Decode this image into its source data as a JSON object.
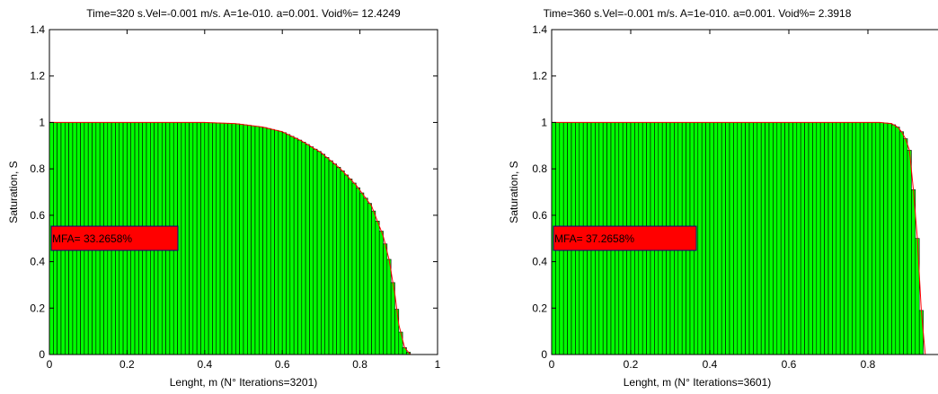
{
  "chart_data": [
    {
      "type": "bar",
      "title": "Time=320 s.Vel=-0.001 m/s. A=1e-010. a=0.001. Void%= 12.4249",
      "xlabel": "Lenght, m (N° Iterations=3201)",
      "ylabel": "Saturation, S",
      "xlim": [
        0,
        1
      ],
      "ylim": [
        0,
        1.4
      ],
      "xticks": [
        "0",
        "0.2",
        "0.4",
        "0.6",
        "0.8",
        "1"
      ],
      "yticks": [
        "0",
        "0.2",
        "0.4",
        "0.6",
        "0.8",
        "1",
        "1.2",
        "1.4"
      ],
      "annotation": "MFA= 33.2658%",
      "bar_color": "#00ff00",
      "curve_color": "#ff0000",
      "annotation_color": "#ff0000",
      "profile_x": [
        0,
        0.4,
        0.48,
        0.55,
        0.6,
        0.65,
        0.7,
        0.75,
        0.79,
        0.83,
        0.86,
        0.875,
        0.89,
        0.9,
        0.915,
        0.93,
        1.0
      ],
      "profile_y": [
        1.0,
        1.0,
        0.995,
        0.98,
        0.96,
        0.92,
        0.87,
        0.8,
        0.73,
        0.64,
        0.51,
        0.41,
        0.26,
        0.13,
        0.03,
        0.0,
        0.0
      ]
    },
    {
      "type": "bar",
      "title": "Time=360 s.Vel=-0.001 m/s. A=1e-010. a=0.001. Void%= 2.3918",
      "xlabel": "Lenght, m (N° Iterations=3601)",
      "ylabel": "Saturation, S",
      "xlim": [
        0,
        1
      ],
      "ylim": [
        0,
        1.4
      ],
      "xticks": [
        "0",
        "0.2",
        "0.4",
        "0.6",
        "0.8"
      ],
      "yticks": [
        "0",
        "0.2",
        "0.4",
        "0.6",
        "0.8",
        "1",
        "1.2",
        "1.4"
      ],
      "annotation": "MFA= 37.2658%",
      "bar_color": "#00ff00",
      "curve_color": "#ff0000",
      "annotation_color": "#ff0000",
      "profile_x": [
        0,
        0.83,
        0.86,
        0.875,
        0.885,
        0.895,
        0.905,
        0.915,
        0.925,
        0.935,
        0.945,
        1.0
      ],
      "profile_y": [
        1.0,
        1.0,
        0.995,
        0.98,
        0.96,
        0.93,
        0.88,
        0.71,
        0.5,
        0.19,
        0.0,
        0.0
      ]
    }
  ]
}
